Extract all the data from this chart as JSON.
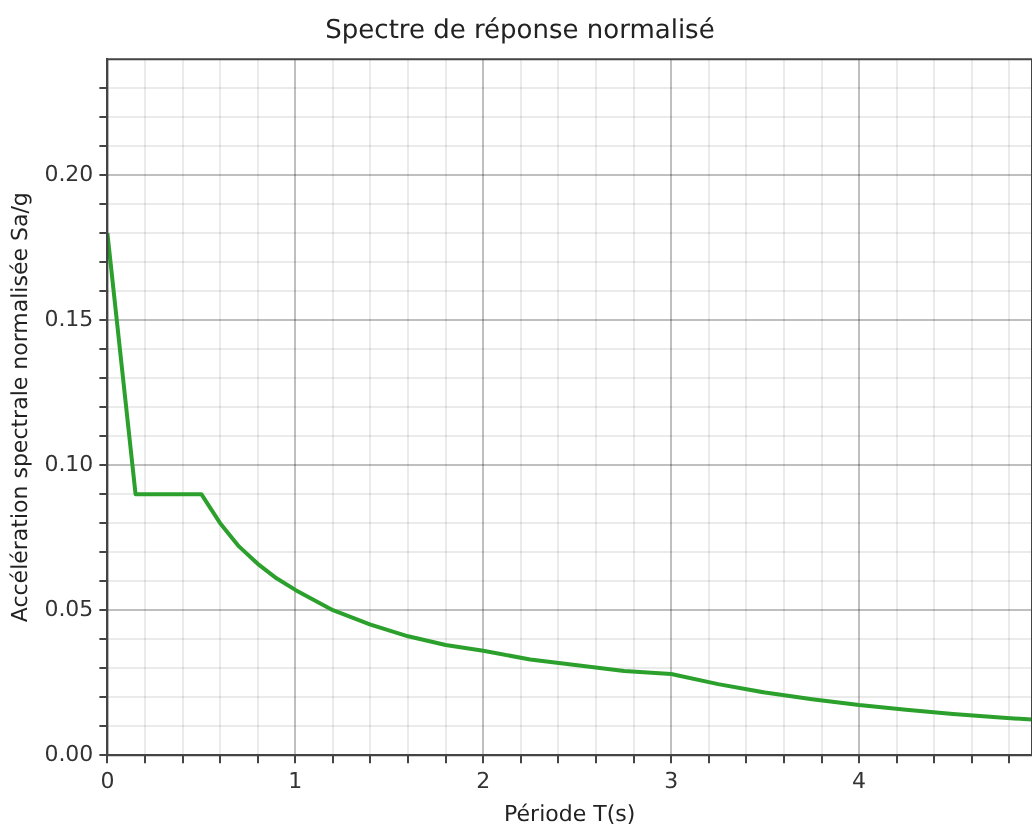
{
  "chart_data": {
    "type": "line",
    "title": "Spectre de réponse normalisé",
    "xlabel": "Période T(s)",
    "ylabel": "Accélération spectrale normalisée Sa/g",
    "x": [
      0,
      0.15,
      0.5,
      0.6,
      0.7,
      0.8,
      0.9,
      1,
      1.2,
      1.4,
      1.6,
      1.8,
      2,
      2.25,
      2.5,
      2.75,
      3,
      3.25,
      3.5,
      3.75,
      4,
      4.25,
      4.5,
      4.75,
      4.92
    ],
    "series": [
      {
        "color": "#2ca02c",
        "values": [
          0.18,
          0.09,
          0.09,
          0.08,
          0.072,
          0.066,
          0.061,
          0.057,
          0.05,
          0.045,
          0.041,
          0.038,
          0.036,
          0.033,
          0.031,
          0.029,
          0.028,
          0.0245,
          0.0216,
          0.0193,
          0.0173,
          0.0157,
          0.0142,
          0.013,
          0.0123
        ]
      }
    ],
    "xlim": [
      0,
      4.92
    ],
    "xticks": [
      0,
      {
        "value": 0.2,
        "label": null
      },
      {
        "value": 0.4,
        "label": null
      },
      {
        "value": 0.6,
        "label": null
      },
      {
        "value": 0.8,
        "label": null
      },
      1,
      {
        "value": 1.2,
        "label": null
      },
      {
        "value": 1.4,
        "label": null
      },
      {
        "value": 1.6,
        "label": null
      },
      {
        "value": 1.8,
        "label": null
      },
      2,
      {
        "value": 2.2,
        "label": null
      },
      {
        "value": 2.4,
        "label": null
      },
      {
        "value": 2.6,
        "label": null
      },
      {
        "value": 2.8,
        "label": null
      },
      3,
      {
        "value": 3.2,
        "label": null
      },
      {
        "value": 3.4,
        "label": null
      },
      {
        "value": 3.6,
        "label": null
      },
      {
        "value": 3.8,
        "label": null
      },
      4,
      {
        "value": 4.2,
        "label": null
      },
      {
        "value": 4.4,
        "label": null
      },
      {
        "value": 4.6,
        "label": null
      },
      {
        "value": 4.8,
        "label": null
      }
    ],
    "ylim": [
      0,
      0.24
    ],
    "yticks": [
      {
        "value": 0,
        "label": "0.00"
      },
      {
        "value": 0.01,
        "label": null
      },
      {
        "value": 0.02,
        "label": null
      },
      {
        "value": 0.03,
        "label": null
      },
      {
        "value": 0.04,
        "label": null
      },
      {
        "value": 0.05,
        "label": "0.05"
      },
      {
        "value": 0.06,
        "label": null
      },
      {
        "value": 0.07,
        "label": null
      },
      {
        "value": 0.08,
        "label": null
      },
      {
        "value": 0.09,
        "label": null
      },
      {
        "value": 0.1,
        "label": "0.10"
      },
      {
        "value": 0.11,
        "label": null
      },
      {
        "value": 0.12,
        "label": null
      },
      {
        "value": 0.13,
        "label": null
      },
      {
        "value": 0.14,
        "label": null
      },
      {
        "value": 0.15,
        "label": "0.15"
      },
      {
        "value": 0.16,
        "label": null
      },
      {
        "value": 0.17,
        "label": null
      },
      {
        "value": 0.18,
        "label": null
      },
      {
        "value": 0.19,
        "label": null
      },
      {
        "value": 0.2,
        "label": "0.20"
      },
      {
        "value": 0.21,
        "label": null
      },
      {
        "value": 0.22,
        "label": null
      },
      {
        "value": 0.23,
        "label": null
      }
    ],
    "grid": true,
    "legend": false,
    "marker": "none",
    "line_style": "solid"
  }
}
